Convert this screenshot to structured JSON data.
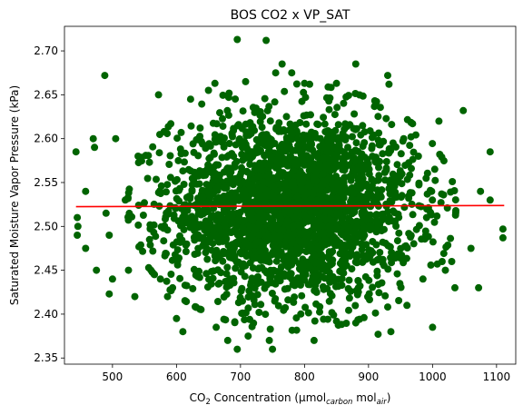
{
  "chart_data": {
    "type": "scatter",
    "title": "BOS CO2 x VP_SAT",
    "xlabel": {
      "prefix": "CO",
      "sub1": "2",
      "mid": " Concentration (μmol",
      "sub2": "carbon",
      "mid2": " mol",
      "sub3": "air",
      "suffix": ")"
    },
    "ylabel": "Saturated Moisture Vapor Pressure (kPa)",
    "xlim": [
      425,
      1130
    ],
    "ylim": [
      2.343,
      2.728
    ],
    "xticks": [
      "500",
      "600",
      "700",
      "800",
      "900",
      "1000",
      "1100"
    ],
    "yticks": [
      "2.35",
      "2.40",
      "2.45",
      "2.50",
      "2.55",
      "2.60",
      "2.65",
      "2.70"
    ],
    "grid": false,
    "point_color": "#006400",
    "trend_color": "#ff0000",
    "trend_line": {
      "x": [
        443,
        1112
      ],
      "y": [
        2.5225,
        2.5238
      ]
    },
    "cluster": {
      "center_x": 780,
      "center_y": 2.522,
      "sd_x": 95,
      "sd_y": 0.052
    },
    "outliers": [
      {
        "x": 443,
        "y": 2.585
      },
      {
        "x": 445,
        "y": 2.51
      },
      {
        "x": 446,
        "y": 2.5
      },
      {
        "x": 445,
        "y": 2.49
      },
      {
        "x": 458,
        "y": 2.54
      },
      {
        "x": 458,
        "y": 2.475
      },
      {
        "x": 470,
        "y": 2.6
      },
      {
        "x": 472,
        "y": 2.59
      },
      {
        "x": 475,
        "y": 2.45
      },
      {
        "x": 488,
        "y": 2.672
      },
      {
        "x": 490,
        "y": 2.515
      },
      {
        "x": 495,
        "y": 2.49
      },
      {
        "x": 500,
        "y": 2.44
      },
      {
        "x": 495,
        "y": 2.423
      },
      {
        "x": 505,
        "y": 2.6
      },
      {
        "x": 520,
        "y": 2.53
      },
      {
        "x": 525,
        "y": 2.45
      },
      {
        "x": 535,
        "y": 2.42
      },
      {
        "x": 540,
        "y": 2.58
      },
      {
        "x": 560,
        "y": 2.45
      },
      {
        "x": 572,
        "y": 2.65
      },
      {
        "x": 575,
        "y": 2.44
      },
      {
        "x": 586,
        "y": 2.42
      },
      {
        "x": 594,
        "y": 2.43
      },
      {
        "x": 600,
        "y": 2.395
      },
      {
        "x": 610,
        "y": 2.38
      },
      {
        "x": 622,
        "y": 2.645
      },
      {
        "x": 650,
        "y": 2.655
      },
      {
        "x": 660,
        "y": 2.663
      },
      {
        "x": 662,
        "y": 2.385
      },
      {
        "x": 680,
        "y": 2.37
      },
      {
        "x": 695,
        "y": 2.713
      },
      {
        "x": 695,
        "y": 2.36
      },
      {
        "x": 708,
        "y": 2.665
      },
      {
        "x": 712,
        "y": 2.375
      },
      {
        "x": 740,
        "y": 2.712
      },
      {
        "x": 745,
        "y": 2.37
      },
      {
        "x": 755,
        "y": 2.675
      },
      {
        "x": 750,
        "y": 2.36
      },
      {
        "x": 765,
        "y": 2.685
      },
      {
        "x": 780,
        "y": 2.675
      },
      {
        "x": 800,
        "y": 2.663
      },
      {
        "x": 808,
        "y": 2.662
      },
      {
        "x": 815,
        "y": 2.37
      },
      {
        "x": 850,
        "y": 2.663
      },
      {
        "x": 850,
        "y": 2.392
      },
      {
        "x": 880,
        "y": 2.685
      },
      {
        "x": 880,
        "y": 2.39
      },
      {
        "x": 915,
        "y": 2.377
      },
      {
        "x": 930,
        "y": 2.672
      },
      {
        "x": 932,
        "y": 2.662
      },
      {
        "x": 935,
        "y": 2.38
      },
      {
        "x": 955,
        "y": 2.6
      },
      {
        "x": 960,
        "y": 2.41
      },
      {
        "x": 978,
        "y": 2.58
      },
      {
        "x": 985,
        "y": 2.44
      },
      {
        "x": 1000,
        "y": 2.385
      },
      {
        "x": 1010,
        "y": 2.62
      },
      {
        "x": 1015,
        "y": 2.46
      },
      {
        "x": 1020,
        "y": 2.45
      },
      {
        "x": 1030,
        "y": 2.46
      },
      {
        "x": 1035,
        "y": 2.43
      },
      {
        "x": 1048,
        "y": 2.632
      },
      {
        "x": 1060,
        "y": 2.475
      },
      {
        "x": 1072,
        "y": 2.43
      },
      {
        "x": 1075,
        "y": 2.54
      },
      {
        "x": 1090,
        "y": 2.585
      },
      {
        "x": 1090,
        "y": 2.53
      },
      {
        "x": 1110,
        "y": 2.497
      },
      {
        "x": 1110,
        "y": 2.487
      }
    ]
  }
}
